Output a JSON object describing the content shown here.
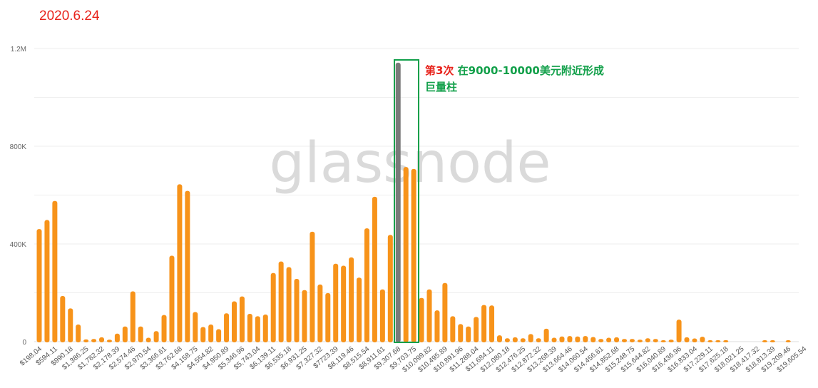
{
  "header": {
    "date": "2020.6.24"
  },
  "annotation": {
    "highlight": "第3次",
    "text_line1": "在9000-10000美元附近形成",
    "text_line2": "巨量柱"
  },
  "watermark": "glassnode",
  "colors": {
    "bar": "#f7931a",
    "highlight_bar": "#7a7a7a",
    "box": "#12a04a",
    "grid": "#eeeeee"
  },
  "chart_data": {
    "type": "bar",
    "title": "",
    "xlabel": "",
    "ylabel": "",
    "ylim": [
      0,
      1200000
    ],
    "y_ticks": [
      {
        "value": 0,
        "label": "0"
      },
      {
        "value": 400000,
        "label": "400K"
      },
      {
        "value": 800000,
        "label": "800K"
      },
      {
        "value": 1200000,
        "label": "1.2M"
      }
    ],
    "grid_step": 200000,
    "highlight_index": 46,
    "tick_labels": [
      "$198.04",
      "$594.11",
      "$990.18",
      "$1,386.25",
      "$1,782.32",
      "$2,178.39",
      "$2,574.46",
      "$2,970.54",
      "$3,366.61",
      "$3,762.68",
      "$4,158.75",
      "$4,554.82",
      "$4,950.89",
      "$5,346.96",
      "$5,743.04",
      "$6,139.11",
      "$6,535.18",
      "$6,931.25",
      "$7,327.32",
      "$7723.39",
      "$8,119.46",
      "$8,515.54",
      "$8,911.61",
      "$9,307.68",
      "$9,703.75",
      "$10,099.82",
      "$10,495.89",
      "$10,891.96",
      "$11,288.04",
      "$11,684.11",
      "$12,080.18",
      "$12,476.25",
      "$12,872.32",
      "$13,268.39",
      "$13,664.46",
      "$14,060.54",
      "$14,456.61",
      "$14,852.68",
      "$15,248.75",
      "$15,644.82",
      "$16,040.89",
      "$16,436.96",
      "$16,833.04",
      "$17,229.11",
      "$17,625.18",
      "$18,021.25",
      "$18,417.32",
      "$18,813.39",
      "$19,209.46",
      "$19,605.54"
    ],
    "values": [
      461000,
      498000,
      576000,
      187000,
      136000,
      70000,
      9000,
      11000,
      18000,
      8000,
      33000,
      62000,
      206000,
      62000,
      16000,
      43000,
      109000,
      352000,
      644000,
      617000,
      121000,
      60000,
      70000,
      51000,
      116000,
      165000,
      185000,
      114000,
      104000,
      111000,
      281000,
      328000,
      305000,
      257000,
      211000,
      450000,
      234000,
      199000,
      319000,
      311000,
      345000,
      262000,
      464000,
      593000,
      214000,
      437000,
      1142000,
      715000,
      707000,
      179000,
      214000,
      128000,
      240000,
      104000,
      72000,
      62000,
      101000,
      150000,
      148000,
      26000,
      14000,
      18000,
      14000,
      31000,
      14000,
      53000,
      16000,
      21000,
      23000,
      21000,
      23000,
      19000,
      11000,
      16000,
      18000,
      11000,
      11000,
      8000,
      14000,
      11000,
      4000,
      8000,
      90000,
      18000,
      13000,
      20000,
      4000,
      6000,
      6000,
      0,
      0,
      0,
      0,
      2000,
      3000,
      0,
      3000,
      0,
      0
    ]
  }
}
